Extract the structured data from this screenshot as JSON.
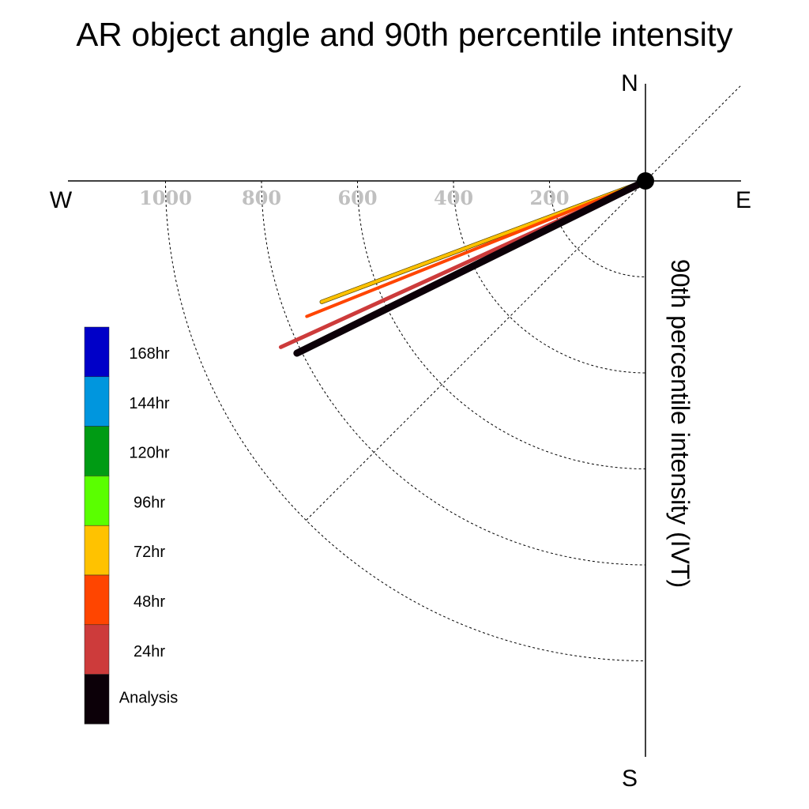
{
  "chart_data": {
    "type": "polar-vector",
    "title": "AR object angle and 90th percentile intensity",
    "ylabel": "90th percentile intensity (IVT)",
    "compass": {
      "north": "N",
      "south": "S",
      "east": "E",
      "west": "W"
    },
    "radial_ticks": [
      {
        "value": 200,
        "label": "200"
      },
      {
        "value": 400,
        "label": "400"
      },
      {
        "value": 600,
        "label": "600"
      },
      {
        "value": 800,
        "label": "800"
      },
      {
        "value": 1000,
        "label": "1000"
      }
    ],
    "series": [
      {
        "name": "72hr",
        "color": "#ffc200",
        "angle_deg": 200.5,
        "intensity": 720
      },
      {
        "name": "48hr",
        "color": "#ff4500",
        "angle_deg": 201.8,
        "intensity": 760
      },
      {
        "name": "24hr",
        "color": "#cd3b3b",
        "angle_deg": 204.5,
        "intensity": 835
      },
      {
        "name": "Analysis",
        "color": "#0c0008",
        "angle_deg": 206.3,
        "intensity": 810
      }
    ],
    "legend": [
      {
        "label": "168hr",
        "color": "#0000c8"
      },
      {
        "label": "144hr",
        "color": "#0096de"
      },
      {
        "label": "120hr",
        "color": "#009b14"
      },
      {
        "label": "96hr",
        "color": "#5aff00"
      },
      {
        "label": "72hr",
        "color": "#ffc200"
      },
      {
        "label": "48hr",
        "color": "#ff4500"
      },
      {
        "label": "24hr",
        "color": "#cd3b3b"
      },
      {
        "label": "Analysis",
        "color": "#0c0008"
      }
    ]
  }
}
